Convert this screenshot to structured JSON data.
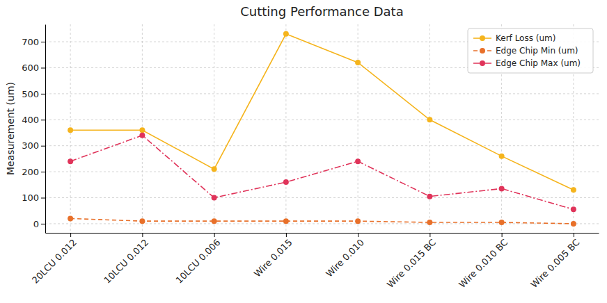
{
  "chart_data": {
    "type": "line",
    "title": "Cutting Performance Data",
    "y_label": "Measurement (um)",
    "categories": [
      "20LCU 0.012",
      "10LCU 0.012",
      "10LCU 0.006",
      "Wire 0.015",
      "Wire 0.010",
      "Wire 0.015 BC",
      "Wire 0.010 BC",
      "Wire 0.005 BC"
    ],
    "series": [
      {
        "name": "Kerf Loss (um)",
        "color": "#f5b41c",
        "marker": "circle",
        "line_style": "solid",
        "values": [
          360,
          360,
          210,
          730,
          620,
          400,
          260,
          130
        ]
      },
      {
        "name": "Edge Chip Min (um)",
        "color": "#e8702a",
        "marker": "circle",
        "line_style": "dashed",
        "values": [
          20,
          10,
          10,
          10,
          10,
          5,
          5,
          0
        ]
      },
      {
        "name": "Edge Chip Max (um)",
        "color": "#e0345a",
        "marker": "circle",
        "line_style": "dashdot",
        "values": [
          240,
          340,
          100,
          160,
          240,
          105,
          135,
          55
        ]
      }
    ],
    "ylim": [
      -35,
      767
    ],
    "yticks": [
      0,
      100,
      200,
      300,
      400,
      500,
      600,
      700
    ],
    "grid": true,
    "legend": "upper right"
  }
}
